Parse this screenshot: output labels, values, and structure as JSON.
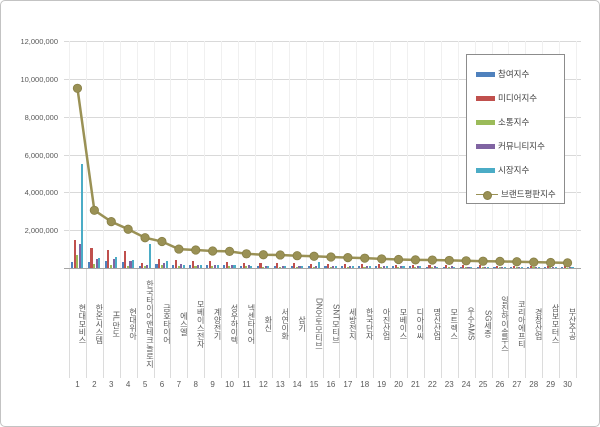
{
  "chart_data": {
    "type": "bar+line",
    "title": "",
    "legend_position": "right-top",
    "grid": true,
    "y_axis": {
      "min": 0,
      "max": 12000000,
      "ticks": [
        {
          "label": "12,000,000",
          "value": 12000000
        },
        {
          "label": "10,000,000",
          "value": 10000000
        },
        {
          "label": "8,000,000",
          "value": 8000000
        },
        {
          "label": "6,000,000",
          "value": 6000000
        },
        {
          "label": "4,000,000",
          "value": 4000000
        },
        {
          "label": "2,000,000",
          "value": 2000000
        }
      ]
    },
    "categories": [
      "현대모비스",
      "한온시스템",
      "HL만도",
      "현대위아",
      "한국타이어앤테크놀로지",
      "금호타이어",
      "에스엘",
      "모베이스전자",
      "계양전기",
      "성우하이텍",
      "넥센타이어",
      "화신",
      "서연이화",
      "삼기",
      "DN오토모티브",
      "SNT모티브",
      "세방전지",
      "한국단자",
      "아진산업",
      "모베이스",
      "디아이씨",
      "명신산업",
      "모트렉스",
      "우수AMS",
      "SG세종",
      "일진하이솔루스",
      "코리아에프티",
      "경창산업",
      "삼보모터스",
      "부산주공"
    ],
    "ranks": [
      1,
      2,
      3,
      4,
      5,
      6,
      7,
      8,
      9,
      10,
      11,
      12,
      13,
      14,
      15,
      16,
      17,
      18,
      19,
      20,
      21,
      22,
      23,
      24,
      25,
      26,
      27,
      28,
      29,
      30
    ],
    "series": [
      {
        "name": "참여지수",
        "type": "bar",
        "color": "#4f81bd",
        "values": [
          320000,
          330000,
          350000,
          300000,
          120000,
          200000,
          150000,
          150000,
          150000,
          150000,
          120000,
          120000,
          120000,
          100000,
          100000,
          100000,
          90000,
          90000,
          80000,
          80000,
          80000,
          70000,
          70000,
          70000,
          60000,
          60000,
          60000,
          50000,
          50000,
          50000
        ]
      },
      {
        "name": "미디어지수",
        "type": "bar",
        "color": "#c0504d",
        "values": [
          1500000,
          1050000,
          950000,
          900000,
          250000,
          450000,
          400000,
          380000,
          350000,
          330000,
          280000,
          260000,
          250000,
          240000,
          230000,
          220000,
          210000,
          200000,
          190000,
          180000,
          170000,
          160000,
          160000,
          150000,
          140000,
          130000,
          130000,
          120000,
          110000,
          100000
        ]
      },
      {
        "name": "소통지수",
        "type": "bar",
        "color": "#9bbb59",
        "values": [
          670000,
          200000,
          150000,
          120000,
          80000,
          150000,
          100000,
          100000,
          100000,
          80000,
          80000,
          70000,
          70000,
          70000,
          60000,
          60000,
          60000,
          50000,
          50000,
          50000,
          40000,
          40000,
          40000,
          40000,
          30000,
          30000,
          30000,
          30000,
          30000,
          20000
        ]
      },
      {
        "name": "커뮤니티지수",
        "type": "bar",
        "color": "#8064a2",
        "values": [
          1280000,
          450000,
          500000,
          350000,
          150000,
          250000,
          200000,
          180000,
          180000,
          160000,
          150000,
          130000,
          130000,
          120000,
          120000,
          110000,
          110000,
          100000,
          100000,
          90000,
          90000,
          80000,
          80000,
          70000,
          70000,
          60000,
          60000,
          50000,
          50000,
          40000
        ]
      },
      {
        "name": "시장지수",
        "type": "bar",
        "color": "#4bacc6",
        "values": [
          5500000,
          550000,
          570000,
          400000,
          1250000,
          350000,
          180000,
          150000,
          150000,
          150000,
          130000,
          120000,
          120000,
          110000,
          300000,
          100000,
          100000,
          90000,
          90000,
          80000,
          80000,
          70000,
          70000,
          60000,
          60000,
          60000,
          50000,
          50000,
          50000,
          40000
        ]
      },
      {
        "name": "브랜드평판지수",
        "type": "line",
        "color": "#9a9155",
        "marker_stroke": "#877f45",
        "values": [
          9500000,
          3050000,
          2450000,
          2050000,
          1600000,
          1400000,
          1000000,
          950000,
          900000,
          880000,
          750000,
          700000,
          690000,
          650000,
          620000,
          580000,
          550000,
          520000,
          480000,
          450000,
          430000,
          420000,
          400000,
          380000,
          360000,
          350000,
          330000,
          310000,
          290000,
          270000
        ]
      }
    ]
  }
}
